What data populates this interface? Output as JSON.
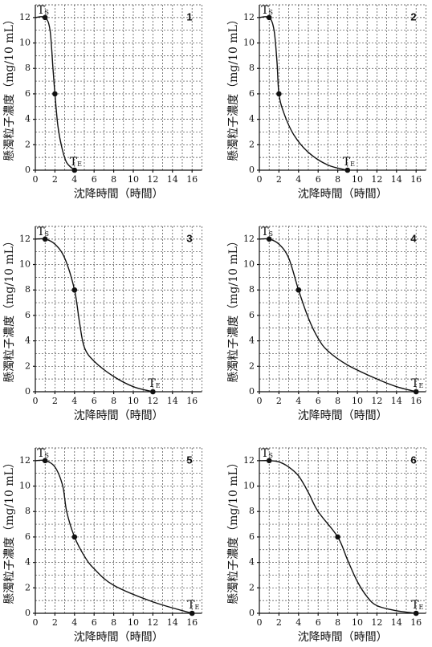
{
  "chart_data": [
    {
      "type": "line",
      "panel": "1",
      "xlabel": "沈降時間（時間）",
      "ylabel": "懸濁粒子濃度（mg/10 mL）",
      "xlim": [
        0,
        17
      ],
      "ylim": [
        0,
        13
      ],
      "xticks": [
        0,
        2,
        4,
        6,
        8,
        10,
        12,
        14,
        16
      ],
      "yticks": [
        0,
        2,
        4,
        6,
        8,
        10,
        12
      ],
      "xgrid": [
        1,
        2,
        3,
        4,
        5,
        6,
        7,
        8,
        9,
        10,
        11,
        12,
        13,
        14,
        15,
        16,
        17
      ],
      "ygrid": [
        1,
        2,
        3,
        4,
        5,
        6,
        7,
        8,
        9,
        10,
        11,
        12,
        13
      ],
      "color": "#111",
      "x": [
        0,
        1,
        1.5,
        1.8,
        2,
        2.3,
        2.7,
        3.2,
        4
      ],
      "values": [
        12,
        12,
        11,
        8,
        6,
        3.5,
        1.8,
        0.6,
        0
      ],
      "points": {
        "x": [
          1,
          2,
          4
        ],
        "values": [
          12,
          6,
          0
        ]
      },
      "start_label": {
        "main": "T",
        "sub": "S"
      },
      "end_label": {
        "main": "T",
        "sub": "E"
      }
    },
    {
      "type": "line",
      "panel": "2",
      "xlabel": "沈降時間（時間）",
      "ylabel": "懸濁粒子濃度（mg/10 mL）",
      "xlim": [
        0,
        17
      ],
      "ylim": [
        0,
        13
      ],
      "xticks": [
        0,
        2,
        4,
        6,
        8,
        10,
        12,
        14,
        16
      ],
      "yticks": [
        0,
        2,
        4,
        6,
        8,
        10,
        12
      ],
      "xgrid": [
        1,
        2,
        3,
        4,
        5,
        6,
        7,
        8,
        9,
        10,
        11,
        12,
        13,
        14,
        15,
        16,
        17
      ],
      "ygrid": [
        1,
        2,
        3,
        4,
        5,
        6,
        7,
        8,
        9,
        10,
        11,
        12,
        13
      ],
      "color": "#111",
      "x": [
        0,
        1,
        1.5,
        1.8,
        2,
        2.5,
        3.5,
        5,
        7,
        9
      ],
      "values": [
        12,
        12,
        11,
        8.5,
        6,
        4.5,
        2.8,
        1.4,
        0.4,
        0
      ],
      "points": {
        "x": [
          1,
          2,
          9
        ],
        "values": [
          12,
          6,
          0
        ]
      },
      "start_label": {
        "main": "T",
        "sub": "S"
      },
      "end_label": {
        "main": "T",
        "sub": "E"
      }
    },
    {
      "type": "line",
      "panel": "3",
      "xlabel": "沈降時間（時間）",
      "ylabel": "懸濁粒子濃度（mg/10 mL）",
      "xlim": [
        0,
        17
      ],
      "ylim": [
        0,
        13
      ],
      "xticks": [
        0,
        2,
        4,
        6,
        8,
        10,
        12,
        14,
        16
      ],
      "yticks": [
        0,
        2,
        4,
        6,
        8,
        10,
        12
      ],
      "xgrid": [
        1,
        2,
        3,
        4,
        5,
        6,
        7,
        8,
        9,
        10,
        11,
        12,
        13,
        14,
        15,
        16,
        17
      ],
      "ygrid": [
        1,
        2,
        3,
        4,
        5,
        6,
        7,
        8,
        9,
        10,
        11,
        12,
        13
      ],
      "color": "#111",
      "x": [
        0,
        1,
        2,
        3,
        4,
        4.5,
        5,
        6,
        8,
        10,
        12
      ],
      "values": [
        12,
        12,
        11.6,
        10.5,
        8,
        5.5,
        3.5,
        2.4,
        1.2,
        0.4,
        0
      ],
      "points": {
        "x": [
          1,
          4,
          12
        ],
        "values": [
          12,
          8,
          0
        ]
      },
      "start_label": {
        "main": "T",
        "sub": "S"
      },
      "end_label": {
        "main": "T",
        "sub": "E"
      }
    },
    {
      "type": "line",
      "panel": "4",
      "xlabel": "沈降時間（時間）",
      "ylabel": "懸濁粒子濃度（mg/10 mL）",
      "xlim": [
        0,
        17
      ],
      "ylim": [
        0,
        13
      ],
      "xticks": [
        0,
        2,
        4,
        6,
        8,
        10,
        12,
        14,
        16
      ],
      "yticks": [
        0,
        2,
        4,
        6,
        8,
        10,
        12
      ],
      "xgrid": [
        1,
        2,
        3,
        4,
        5,
        6,
        7,
        8,
        9,
        10,
        11,
        12,
        13,
        14,
        15,
        16,
        17
      ],
      "ygrid": [
        1,
        2,
        3,
        4,
        5,
        6,
        7,
        8,
        9,
        10,
        11,
        12,
        13
      ],
      "color": "#111",
      "x": [
        0,
        1,
        2,
        3,
        4,
        5,
        6,
        7,
        9,
        12,
        14,
        16
      ],
      "values": [
        12,
        12,
        11.6,
        10.5,
        8,
        5.8,
        4.2,
        3.2,
        2.1,
        1,
        0.4,
        0
      ],
      "points": {
        "x": [
          1,
          4,
          16
        ],
        "values": [
          12,
          8,
          0
        ]
      },
      "start_label": {
        "main": "T",
        "sub": "S"
      },
      "end_label": {
        "main": "T",
        "sub": "E"
      }
    },
    {
      "type": "line",
      "panel": "5",
      "xlabel": "沈降時間（時間）",
      "ylabel": "懸濁粒子濃度（mg/10 mL）",
      "xlim": [
        0,
        17
      ],
      "ylim": [
        0,
        13
      ],
      "xticks": [
        0,
        2,
        4,
        6,
        8,
        10,
        12,
        14,
        16
      ],
      "yticks": [
        0,
        2,
        4,
        6,
        8,
        10,
        12
      ],
      "xgrid": [
        1,
        2,
        3,
        4,
        5,
        6,
        7,
        8,
        9,
        10,
        11,
        12,
        13,
        14,
        15,
        16,
        17
      ],
      "ygrid": [
        1,
        2,
        3,
        4,
        5,
        6,
        7,
        8,
        9,
        10,
        11,
        12,
        13
      ],
      "color": "#111",
      "x": [
        0,
        1,
        2,
        2.8,
        3.2,
        4,
        5,
        6,
        8,
        12,
        16
      ],
      "values": [
        12,
        12,
        11.5,
        10,
        8,
        6,
        4.5,
        3.5,
        2.2,
        0.9,
        0
      ],
      "points": {
        "x": [
          1,
          4,
          16
        ],
        "values": [
          12,
          6,
          0
        ]
      },
      "start_label": {
        "main": "T",
        "sub": "S"
      },
      "end_label": {
        "main": "T",
        "sub": "E"
      }
    },
    {
      "type": "line",
      "panel": "6",
      "xlabel": "沈降時間（時間）",
      "ylabel": "懸濁粒子濃度（mg/10 mL）",
      "xlim": [
        0,
        17
      ],
      "ylim": [
        0,
        13
      ],
      "xticks": [
        0,
        2,
        4,
        6,
        8,
        10,
        12,
        14,
        16
      ],
      "yticks": [
        0,
        2,
        4,
        6,
        8,
        10,
        12
      ],
      "xgrid": [
        1,
        2,
        3,
        4,
        5,
        6,
        7,
        8,
        9,
        10,
        11,
        12,
        13,
        14,
        15,
        16,
        17
      ],
      "ygrid": [
        1,
        2,
        3,
        4,
        5,
        6,
        7,
        8,
        9,
        10,
        11,
        12,
        13
      ],
      "color": "#111",
      "x": [
        0,
        1,
        2,
        3,
        4,
        5,
        6,
        8,
        9,
        10,
        11,
        12,
        14,
        16
      ],
      "values": [
        12,
        12,
        11.9,
        11.5,
        10.8,
        9.5,
        8,
        6,
        4.2,
        2.5,
        1.3,
        0.6,
        0.2,
        0
      ],
      "points": {
        "x": [
          1,
          8,
          16
        ],
        "values": [
          12,
          6,
          0
        ]
      },
      "start_label": {
        "main": "T",
        "sub": "S"
      },
      "end_label": {
        "main": "T",
        "sub": "E"
      }
    }
  ]
}
